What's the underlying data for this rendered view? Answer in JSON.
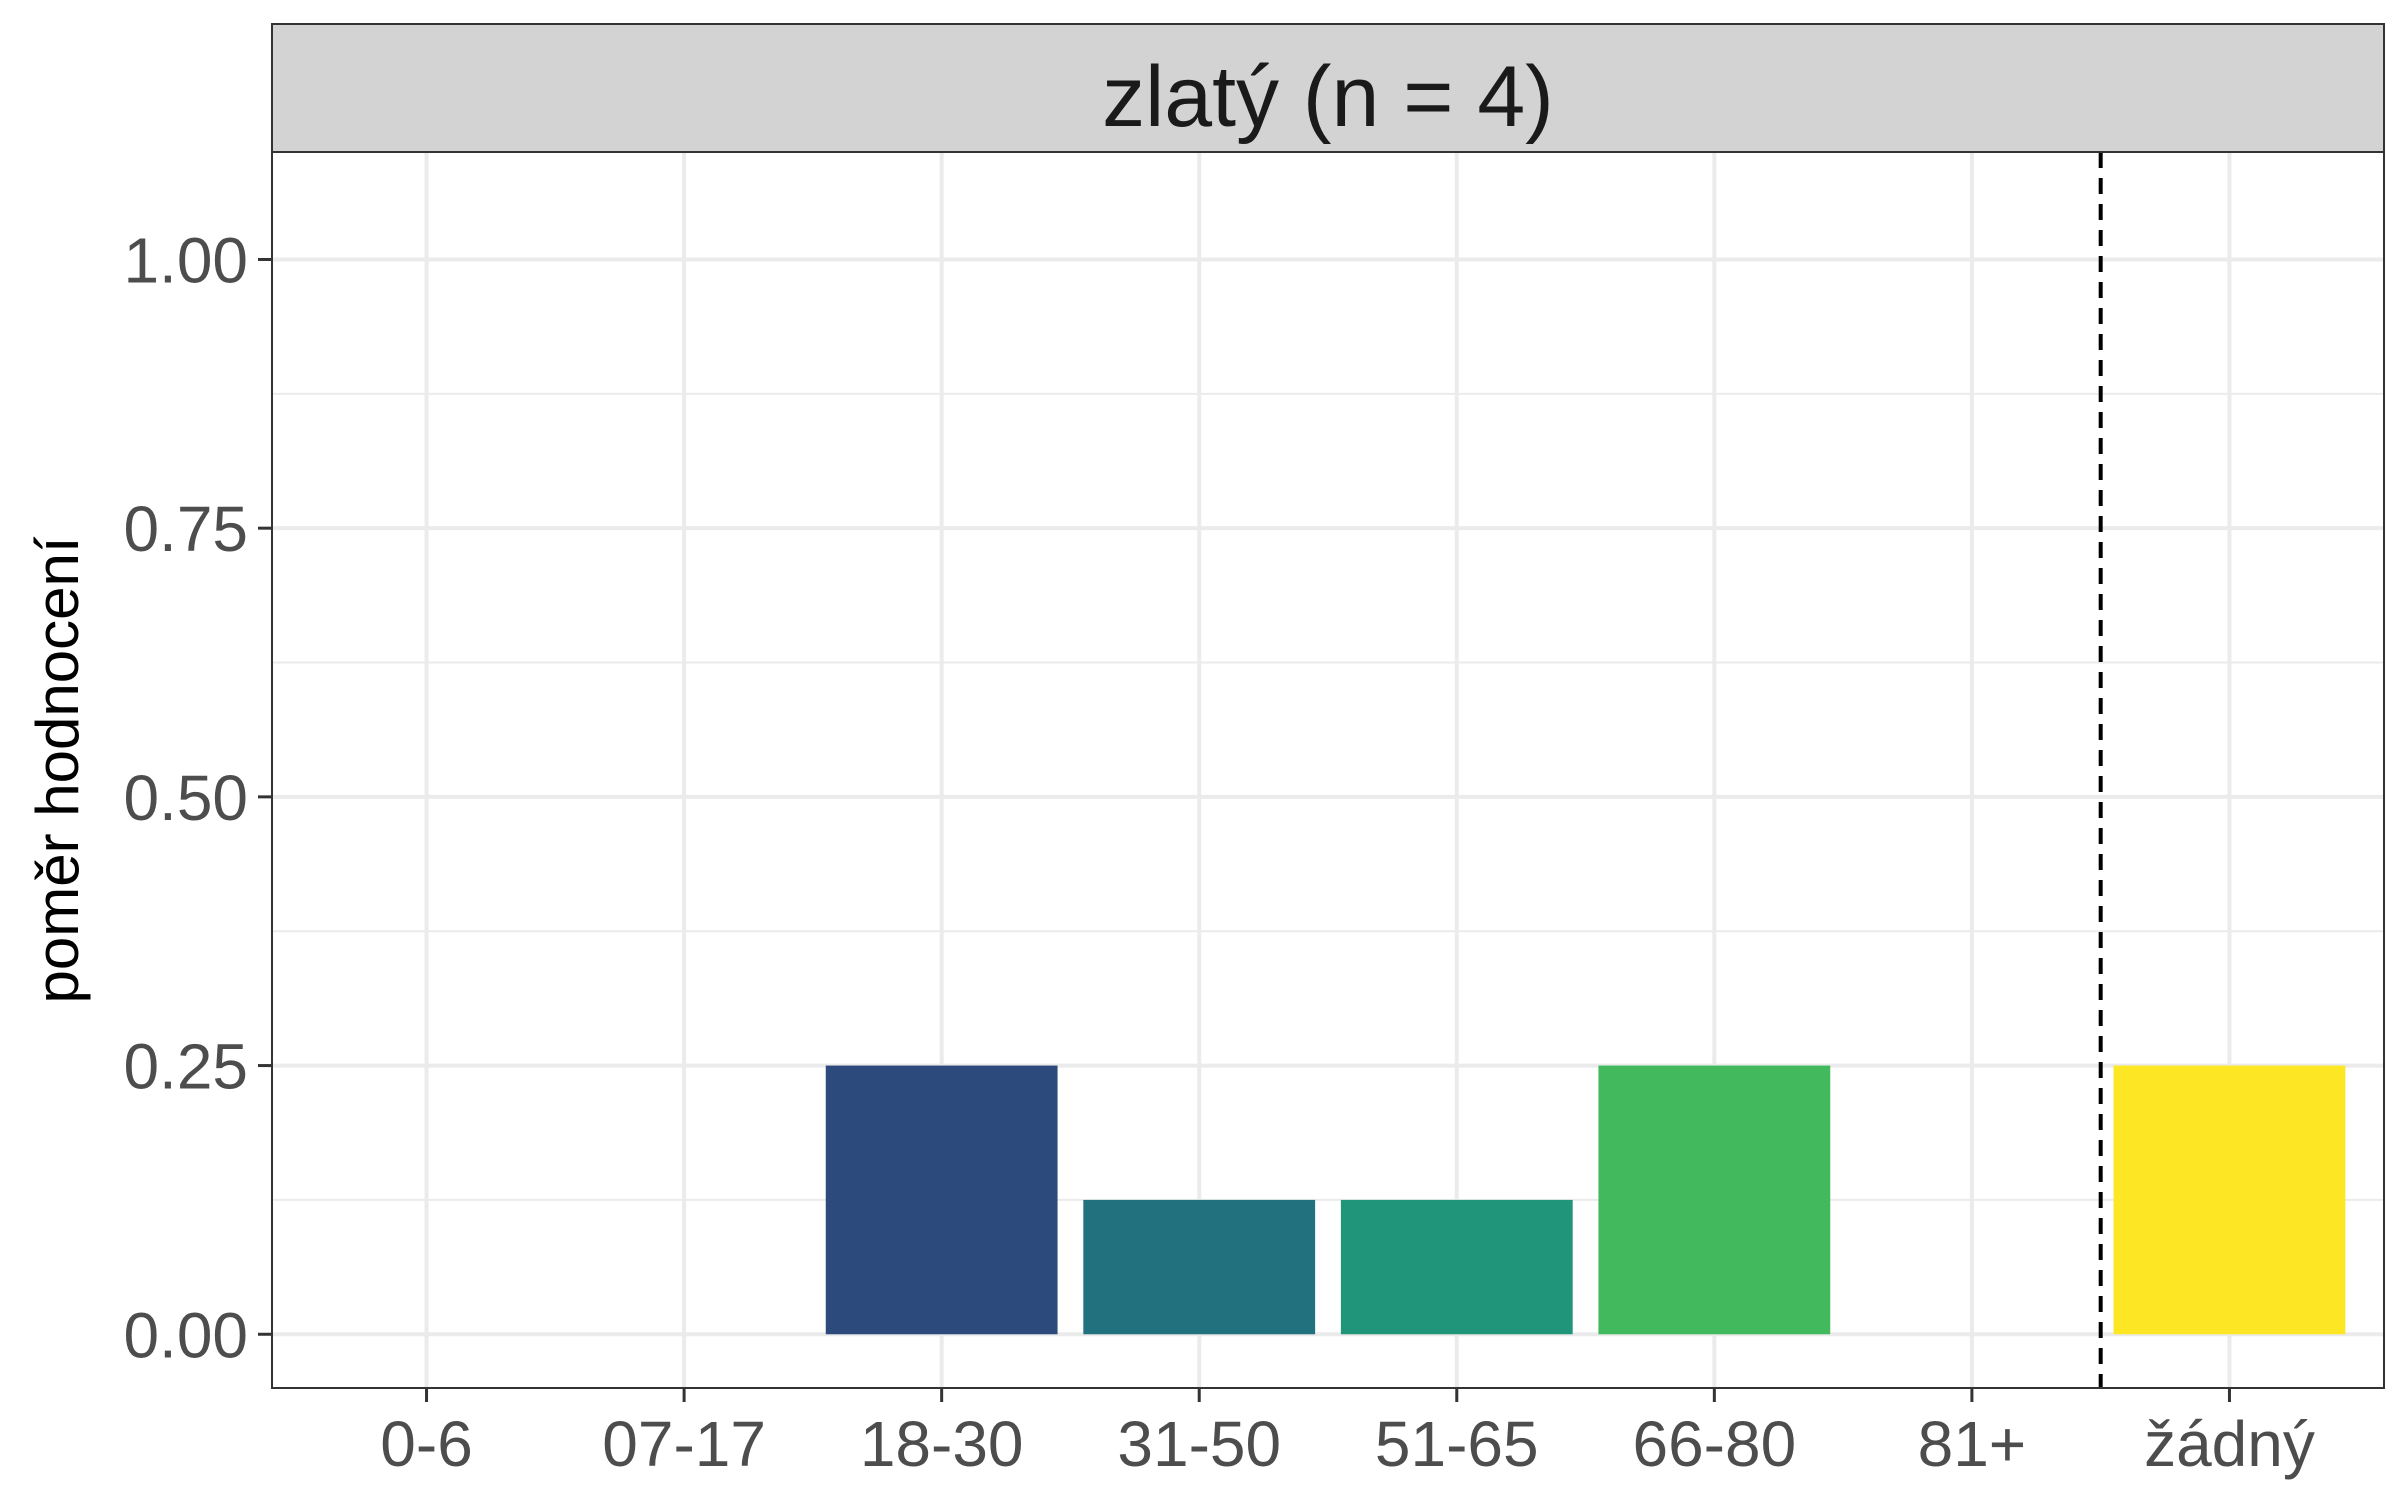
{
  "chart_data": {
    "type": "bar",
    "facet_title": "zlatý (n = 4)",
    "title": "",
    "xlabel": "",
    "ylabel": "poměr hodnocení",
    "categories": [
      "0-6",
      "07-17",
      "18-30",
      "31-50",
      "51-65",
      "66-80",
      "81+",
      "žádný"
    ],
    "values": [
      0,
      0,
      0.25,
      0.125,
      0.125,
      0.25,
      0,
      0.25
    ],
    "colors": [
      "#440154",
      "#46327E",
      "#2C4A7B",
      "#21717E",
      "#21957A",
      "#41B95C",
      "#9AD63A",
      "#FDE725"
    ],
    "ylim": [
      -0.05,
      1.1
    ],
    "y_ticks": [
      0,
      0.25,
      0.5,
      0.75,
      1.0
    ],
    "y_tick_labels": [
      "0.00",
      "0.25",
      "0.50",
      "0.75",
      "1.00"
    ],
    "reference_line": {
      "style": "dashed",
      "between": [
        "81+",
        "žádný"
      ],
      "color": "#000000"
    },
    "grid": true,
    "legend": "none",
    "theme": {
      "strip_fill": "#D3D3D3",
      "panel_border": "#333333",
      "grid_color": "#EBEBEB"
    }
  }
}
